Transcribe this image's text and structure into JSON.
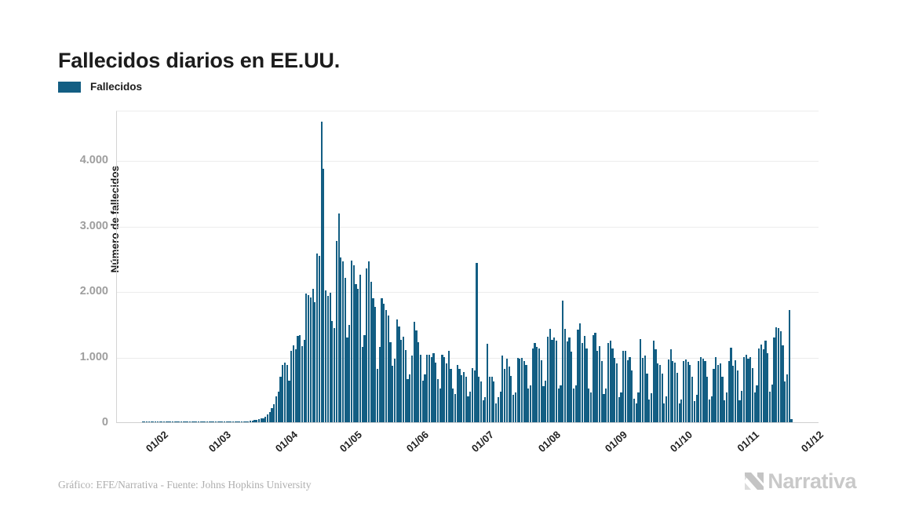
{
  "header": {
    "title": "Fallecidos diarios en EE.UU."
  },
  "legend": {
    "label": "Fallecidos",
    "color": "#135e83"
  },
  "footer": {
    "credit": "Gráfico: EFE/Narrativa - Fuente: Johns Hopkins University"
  },
  "branding": {
    "wordmark": "Narrativa"
  },
  "colors": {
    "bar": "#135e83",
    "grid": "#ececec",
    "axis": "#d4d4d4",
    "y_tick_text": "#9e9e9e",
    "x_tick_text": "#222222",
    "dark_text": "#1c1c1c",
    "muted_text": "#aeaeae",
    "logo_text": "#c9c9c9"
  },
  "chart_data": {
    "type": "bar",
    "title": "Fallecidos diarios en EE.UU.",
    "series_name": "Fallecidos",
    "xlabel": "",
    "ylabel": "Número de fallecidos",
    "grid": "horizontal",
    "legend_position": "top-left",
    "x_start_date": "22/01/2020",
    "x_tick_labels": [
      "01/02",
      "01/03",
      "01/04",
      "01/05",
      "01/06",
      "01/07",
      "01/08",
      "01/09",
      "01/10",
      "01/11",
      "01/12"
    ],
    "x_tick_day_offsets": [
      10,
      39,
      70,
      100,
      131,
      161,
      192,
      223,
      253,
      284,
      314
    ],
    "y_ticks": [
      {
        "label": "0",
        "value": 0
      },
      {
        "label": "1.000",
        "value": 1000
      },
      {
        "label": "2.000",
        "value": 2000
      },
      {
        "label": "3.000",
        "value": 3000
      },
      {
        "label": "4.000",
        "value": 4000
      }
    ],
    "ylim": [
      0,
      4755
    ],
    "values": [
      0,
      0,
      0,
      0,
      0,
      0,
      0,
      0,
      0,
      0,
      0,
      0,
      0,
      0,
      0,
      1,
      1,
      1,
      1,
      1,
      1,
      1,
      1,
      1,
      1,
      2,
      2,
      2,
      2,
      2,
      2,
      3,
      3,
      3,
      3,
      4,
      4,
      5,
      6,
      1,
      1,
      2,
      3,
      4,
      6,
      7,
      9,
      11,
      14,
      18,
      23,
      30,
      38,
      41,
      48,
      56,
      65,
      80,
      120,
      160,
      210,
      280,
      390,
      470,
      695,
      880,
      915,
      870,
      640,
      1090,
      1175,
      1110,
      1320,
      1331,
      1165,
      1255,
      1970,
      1940,
      1900,
      2035,
      1830,
      2570,
      2535,
      4591,
      3872,
      2010,
      1930,
      1980,
      1540,
      1433,
      2770,
      3190,
      2520,
      2460,
      2210,
      1290,
      1480,
      2470,
      2390,
      2110,
      2040,
      2255,
      1153,
      1324,
      2350,
      2461,
      2144,
      1898,
      1760,
      820,
      1154,
      1894,
      1813,
      1715,
      1635,
      1218,
      865,
      975,
      1568,
      1461,
      1263,
      1303,
      1098,
      655,
      735,
      1015,
      1535,
      1402,
      1225,
      1025,
      638,
      730,
      1031,
      1035,
      990,
      1050,
      915,
      660,
      510,
      1030,
      990,
      900,
      1090,
      815,
      510,
      430,
      870,
      815,
      715,
      770,
      690,
      390,
      470,
      830,
      790,
      2437,
      690,
      620,
      330,
      385,
      1199,
      700,
      690,
      620,
      290,
      380,
      470,
      1020,
      820,
      970,
      850,
      710,
      420,
      460,
      985,
      975,
      980,
      930,
      870,
      520,
      560,
      1125,
      1205,
      1150,
      1130,
      950,
      550,
      640,
      1300,
      1430,
      1260,
      1290,
      1240,
      515,
      560,
      1860,
      1420,
      1230,
      1290,
      1080,
      510,
      560,
      1410,
      1504,
      1210,
      1320,
      1130,
      510,
      460,
      1325,
      1360,
      1090,
      1160,
      930,
      430,
      510,
      1205,
      1240,
      1130,
      980,
      900,
      380,
      460,
      1085,
      1090,
      950,
      990,
      790,
      360,
      290,
      460,
      1270,
      980,
      1020,
      740,
      350,
      440,
      1245,
      1110,
      900,
      880,
      740,
      290,
      390,
      960,
      1120,
      930,
      910,
      750,
      290,
      350,
      930,
      960,
      920,
      880,
      690,
      320,
      420,
      940,
      990,
      965,
      930,
      690,
      350,
      390,
      820,
      990,
      870,
      900,
      690,
      340,
      450,
      930,
      1135,
      860,
      950,
      790,
      340,
      480,
      990,
      1030,
      970,
      1000,
      830,
      460,
      560,
      1130,
      1185,
      1120,
      1245,
      1050,
      470,
      580,
      1290,
      1450,
      1440,
      1390,
      1170,
      620,
      730,
      1707,
      52
    ]
  }
}
